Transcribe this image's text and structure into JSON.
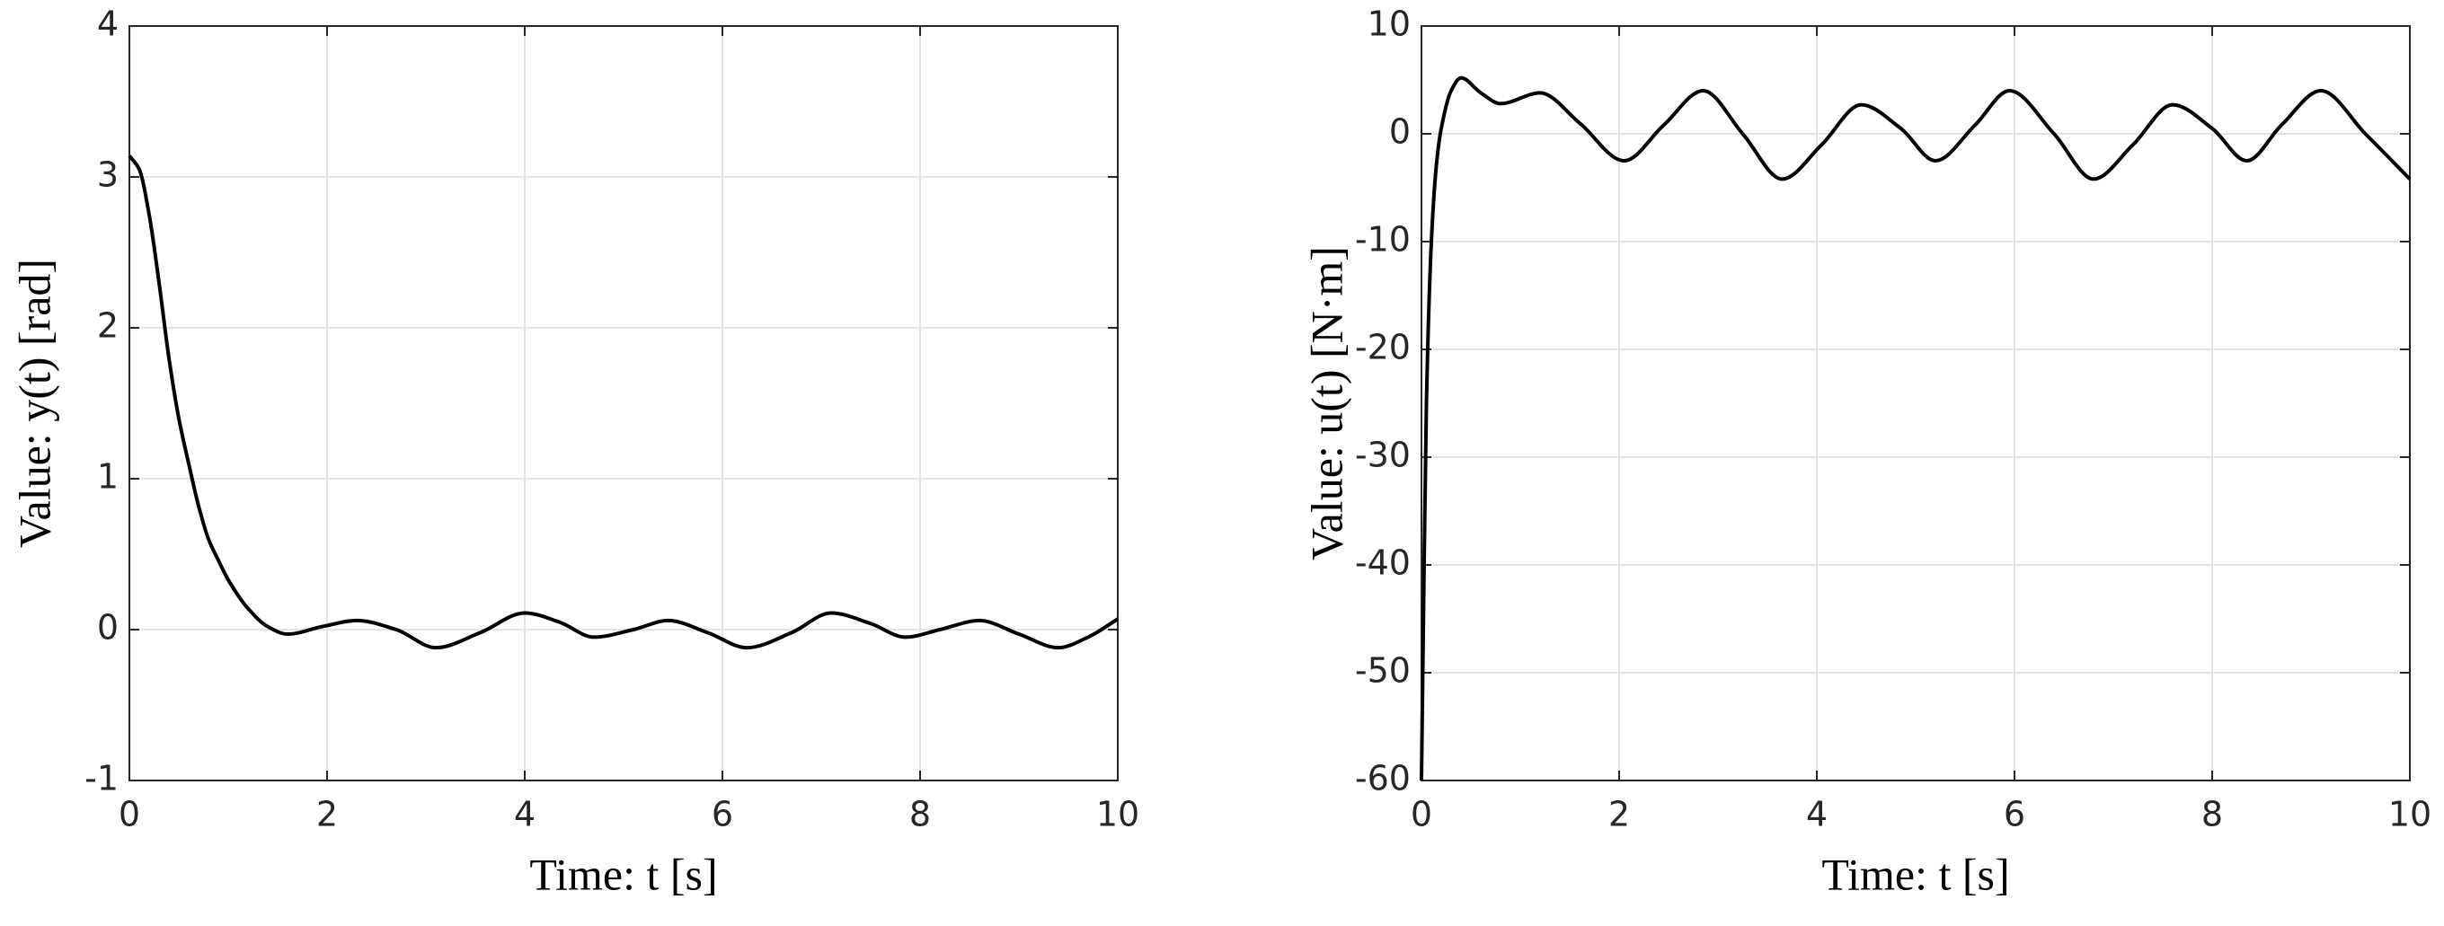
{
  "chart_data": [
    {
      "type": "line",
      "xlabel": "Time: t [s]",
      "ylabel": "Value: y(t) [rad]",
      "x": [
        0,
        0.1,
        0.2,
        0.3,
        0.4,
        0.5,
        0.6,
        0.7,
        0.8,
        0.9,
        1.0,
        1.2,
        1.4,
        1.6,
        1.95,
        2.3,
        2.7,
        3.1,
        3.55,
        4.0,
        4.35,
        4.7,
        5.1,
        5.45,
        5.85,
        6.25,
        6.7,
        7.1,
        7.5,
        7.85,
        8.2,
        8.6,
        9.0,
        9.4,
        9.7,
        10
      ],
      "values": [
        3.14,
        3.05,
        2.75,
        2.3,
        1.8,
        1.4,
        1.1,
        0.82,
        0.6,
        0.46,
        0.33,
        0.14,
        0.02,
        -0.03,
        0.02,
        0.06,
        0.0,
        -0.12,
        -0.02,
        0.11,
        0.05,
        -0.05,
        0.0,
        0.06,
        -0.02,
        -0.12,
        -0.02,
        0.11,
        0.04,
        -0.05,
        0.0,
        0.06,
        -0.03,
        -0.12,
        -0.05,
        0.07
      ],
      "color": "#000000",
      "xlim": [
        0,
        10
      ],
      "xticks": [
        0,
        2,
        4,
        6,
        8,
        10
      ],
      "ylim": [
        -1,
        4
      ],
      "yticks": [
        -1,
        0,
        1,
        2,
        3,
        4
      ],
      "grid": true
    },
    {
      "type": "line",
      "xlabel": "Time: t [s]",
      "ylabel": "Value: u(t) [N·m]",
      "x": [
        0,
        0.02,
        0.05,
        0.1,
        0.15,
        0.2,
        0.3,
        0.4,
        0.6,
        0.8,
        1.2,
        1.6,
        2.05,
        2.45,
        2.85,
        3.25,
        3.65,
        4.05,
        4.45,
        4.85,
        5.2,
        5.6,
        5.95,
        6.4,
        6.8,
        7.2,
        7.6,
        8.0,
        8.35,
        8.7,
        9.1,
        9.55,
        10
      ],
      "values": [
        -60,
        -45,
        -25,
        -10,
        -3,
        0.5,
        4,
        5.2,
        3.8,
        2.8,
        3.8,
        1,
        -2.5,
        0.8,
        4,
        0,
        -4.2,
        -1,
        2.7,
        0.5,
        -2.5,
        0.8,
        4,
        0,
        -4.2,
        -1,
        2.7,
        0.5,
        -2.5,
        0.8,
        4,
        0,
        -4.2
      ],
      "color": "#000000",
      "xlim": [
        0,
        10
      ],
      "xticks": [
        0,
        2,
        4,
        6,
        8,
        10
      ],
      "ylim": [
        -60,
        10
      ],
      "yticks": [
        -60,
        -50,
        -40,
        -30,
        -20,
        -10,
        0,
        10
      ],
      "grid": true
    }
  ]
}
